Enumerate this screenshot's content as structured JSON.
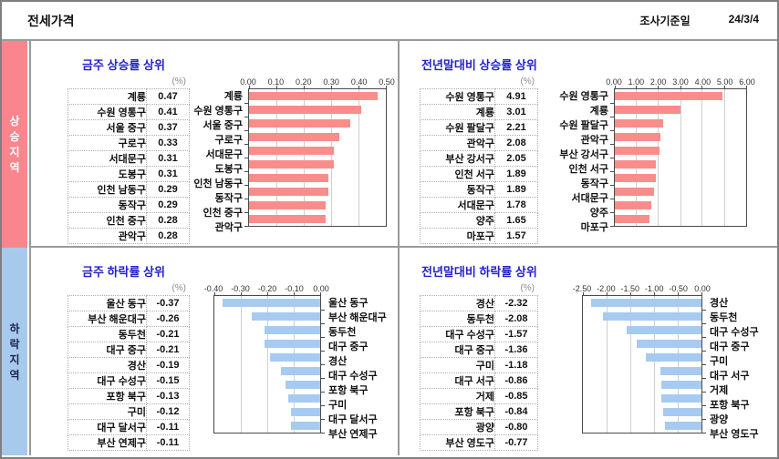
{
  "header": {
    "title": "전세가격",
    "date_label": "조사기준일",
    "date_value": "24/3/4"
  },
  "sidebar": {
    "rising_label": "상승지역",
    "falling_label": "하락지역",
    "rising_bg": "#F9868D",
    "falling_bg": "#A7C9EC"
  },
  "colors": {
    "section_title": "#2222CC",
    "rise_bar": "#FB8C8C",
    "fall_bar": "#A7CBF0",
    "divider": "#9A9A9A"
  },
  "chart_data": [
    {
      "type": "bar",
      "orientation": "horizontal",
      "direction": "up",
      "title": "금주 상승률 상위",
      "unit": "(%)",
      "bar_color": "#FB8C8C",
      "labels_side": "left",
      "axis": {
        "min": 0,
        "max": 0.5,
        "position": "top",
        "tick_labels": [
          "0.00",
          "0.10",
          "0.20",
          "0.30",
          "0.40",
          "0.50"
        ]
      },
      "categories": [
        "계룡",
        "수원 영통구",
        "서울 중구",
        "구로구",
        "서대문구",
        "도봉구",
        "인천 남동구",
        "동작구",
        "인천 중구",
        "관악구"
      ],
      "values": [
        0.47,
        0.41,
        0.37,
        0.33,
        0.31,
        0.31,
        0.29,
        0.29,
        0.28,
        0.28
      ],
      "value_labels": [
        "0.47",
        "0.41",
        "0.37",
        "0.33",
        "0.31",
        "0.31",
        "0.29",
        "0.29",
        "0.28",
        "0.28"
      ]
    },
    {
      "type": "bar",
      "orientation": "horizontal",
      "direction": "up",
      "title": "전년말대비 상승률 상위",
      "unit": "(%)",
      "bar_color": "#FB8C8C",
      "labels_side": "left",
      "axis": {
        "min": 0,
        "max": 6,
        "position": "top",
        "tick_labels": [
          "0.00",
          "1.00",
          "2.00",
          "3.00",
          "4.00",
          "5.00",
          "6.00"
        ]
      },
      "categories": [
        "수원 영통구",
        "계룡",
        "수원 팔달구",
        "관악구",
        "부산 강서구",
        "인천 서구",
        "동작구",
        "서대문구",
        "양주",
        "마포구"
      ],
      "values": [
        4.91,
        3.01,
        2.21,
        2.08,
        2.05,
        1.89,
        1.89,
        1.78,
        1.65,
        1.57
      ],
      "value_labels": [
        "4.91",
        "3.01",
        "2.21",
        "2.08",
        "2.05",
        "1.89",
        "1.89",
        "1.78",
        "1.65",
        "1.57"
      ]
    },
    {
      "type": "bar",
      "orientation": "horizontal",
      "direction": "down",
      "title": "금주 하락률 상위",
      "unit": "(%)",
      "bar_color": "#A7CBF0",
      "labels_side": "right",
      "axis": {
        "min": -0.4,
        "max": 0,
        "position": "top",
        "tick_labels": [
          "-0.40",
          "-0.30",
          "-0.20",
          "-0.10",
          "0.00"
        ]
      },
      "categories": [
        "울산 동구",
        "부산 해운대구",
        "동두천",
        "대구 중구",
        "경산",
        "대구 수성구",
        "포항 북구",
        "구미",
        "대구 달서구",
        "부산 연제구"
      ],
      "values": [
        -0.37,
        -0.26,
        -0.21,
        -0.21,
        -0.19,
        -0.15,
        -0.13,
        -0.12,
        -0.11,
        -0.11
      ],
      "value_labels": [
        "-0.37",
        "-0.26",
        "-0.21",
        "-0.21",
        "-0.19",
        "-0.15",
        "-0.13",
        "-0.12",
        "-0.11",
        "-0.11"
      ]
    },
    {
      "type": "bar",
      "orientation": "horizontal",
      "direction": "down",
      "title": "전년말대비 하락률 상위",
      "unit": "(%)",
      "bar_color": "#A7CBF0",
      "labels_side": "right",
      "axis": {
        "min": -2.5,
        "max": 0,
        "position": "top",
        "tick_labels": [
          "-2.50",
          "-2.00",
          "-1.50",
          "-1.00",
          "-0.50",
          "0.00"
        ]
      },
      "categories": [
        "경산",
        "동두천",
        "대구 수성구",
        "대구 중구",
        "구미",
        "대구 서구",
        "거제",
        "포항 북구",
        "광양",
        "부산 영도구"
      ],
      "values": [
        -2.32,
        -2.08,
        -1.57,
        -1.36,
        -1.18,
        -0.86,
        -0.85,
        -0.84,
        -0.8,
        -0.77
      ],
      "value_labels": [
        "-2.32",
        "-2.08",
        "-1.57",
        "-1.36",
        "-1.18",
        "-0.86",
        "-0.85",
        "-0.84",
        "-0.80",
        "-0.77"
      ]
    }
  ]
}
